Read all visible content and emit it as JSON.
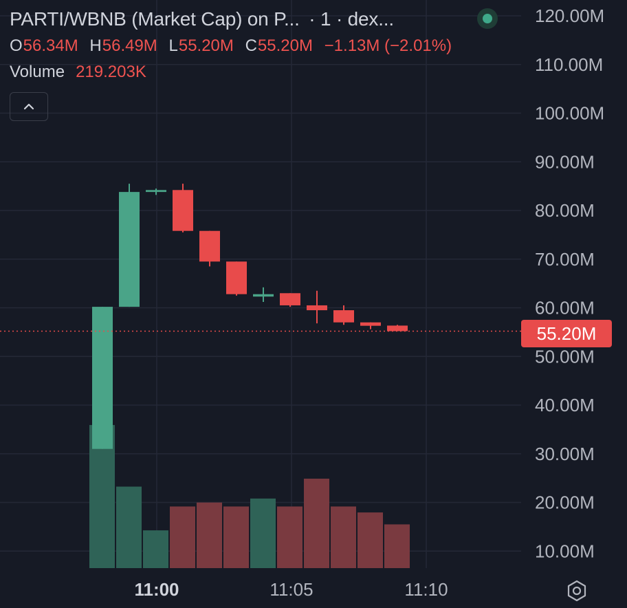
{
  "legend": {
    "title": "PARTI/WBNB (Market Cap) on P...",
    "interval": "· 1 · dex...",
    "ohlc": {
      "o_label": "O",
      "o": "56.34M",
      "h_label": "H",
      "h": "56.49M",
      "l_label": "L",
      "l": "55.20M",
      "c_label": "C",
      "c": "55.20M",
      "change": "−1.13M (−2.01%)"
    },
    "volume_label": "Volume",
    "volume_value": "219.203K"
  },
  "last_price_label": "55.20M",
  "colors": {
    "background": "#161a25",
    "grid": "#242836",
    "up": "#4aa488",
    "down": "#e84b4b",
    "vol_up": "#2f6357",
    "vol_down": "#7a3a40",
    "axis_text": "#b2b5be"
  },
  "icons": {
    "collapse": "chevron-up-icon",
    "status": "status-dot-icon",
    "settings": "gear-icon"
  },
  "chart_data": {
    "type": "candlestick",
    "price_axis": {
      "ticks": [
        10,
        20,
        30,
        40,
        50,
        60,
        70,
        80,
        90,
        100,
        110,
        120
      ],
      "tick_labels": [
        "10.00M",
        "20.00M",
        "30.00M",
        "40.00M",
        "50.00M",
        "60.00M",
        "70.00M",
        "80.00M",
        "90.00M",
        "100.00M",
        "110.00M",
        "120.00M"
      ],
      "unit": "M"
    },
    "time_axis": {
      "ticks": [
        {
          "label": "11:00",
          "bold": true,
          "candle_index": 2.0
        },
        {
          "label": "11:05",
          "bold": false,
          "candle_index": 7.0
        },
        {
          "label": "11:10",
          "bold": false,
          "candle_index": 12.0
        }
      ]
    },
    "last_price": 55.2,
    "candles": [
      {
        "o": 31.0,
        "h": 60.2,
        "l": 31.0,
        "c": 60.2,
        "volume": 36
      },
      {
        "o": 60.2,
        "h": 85.5,
        "l": 60.2,
        "c": 83.8,
        "volume": 20.5
      },
      {
        "o": 83.8,
        "h": 84.5,
        "l": 83.2,
        "c": 84.2,
        "volume": 9.5
      },
      {
        "o": 84.2,
        "h": 85.5,
        "l": 75.5,
        "c": 75.8,
        "volume": 15.5
      },
      {
        "o": 75.8,
        "h": 75.8,
        "l": 68.5,
        "c": 69.5,
        "volume": 16.5
      },
      {
        "o": 69.5,
        "h": 69.5,
        "l": 62.5,
        "c": 62.8,
        "volume": 15.5
      },
      {
        "o": 62.3,
        "h": 64.2,
        "l": 61.2,
        "c": 62.8,
        "volume": 17.5
      },
      {
        "o": 63.0,
        "h": 63.0,
        "l": 60.2,
        "c": 60.5,
        "volume": 15.5
      },
      {
        "o": 60.5,
        "h": 63.5,
        "l": 56.8,
        "c": 59.5,
        "volume": 22.5
      },
      {
        "o": 59.5,
        "h": 60.5,
        "l": 56.5,
        "c": 57.0,
        "volume": 15.5
      },
      {
        "o": 57.0,
        "h": 57.0,
        "l": 55.6,
        "c": 56.3,
        "volume": 14
      },
      {
        "o": 56.34,
        "h": 56.49,
        "l": 55.2,
        "c": 55.2,
        "volume": 11
      }
    ]
  }
}
